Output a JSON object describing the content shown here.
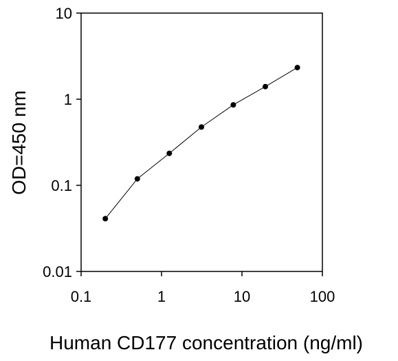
{
  "chart_data": {
    "type": "line",
    "title": "",
    "xlabel": "Human CD177 concentration (ng/ml)",
    "ylabel": "OD=450 nm",
    "xscale": "log",
    "yscale": "log",
    "xlim": [
      0.1,
      100
    ],
    "ylim": [
      0.01,
      10
    ],
    "xticks": [
      "0.1",
      "1",
      "10",
      "100"
    ],
    "yticks": [
      "0.01",
      "0.1",
      "1",
      "10"
    ],
    "grid": false,
    "legend": "none",
    "series": [
      {
        "x": [
          0.2,
          0.5,
          1.25,
          3.13,
          7.81,
          19.53,
          48.83
        ],
        "y": [
          0.041,
          0.119,
          0.235,
          0.475,
          0.86,
          1.4,
          2.33
        ]
      }
    ],
    "colors": {
      "line": "#000000",
      "marker": "#000000",
      "axis": "#000000"
    }
  }
}
